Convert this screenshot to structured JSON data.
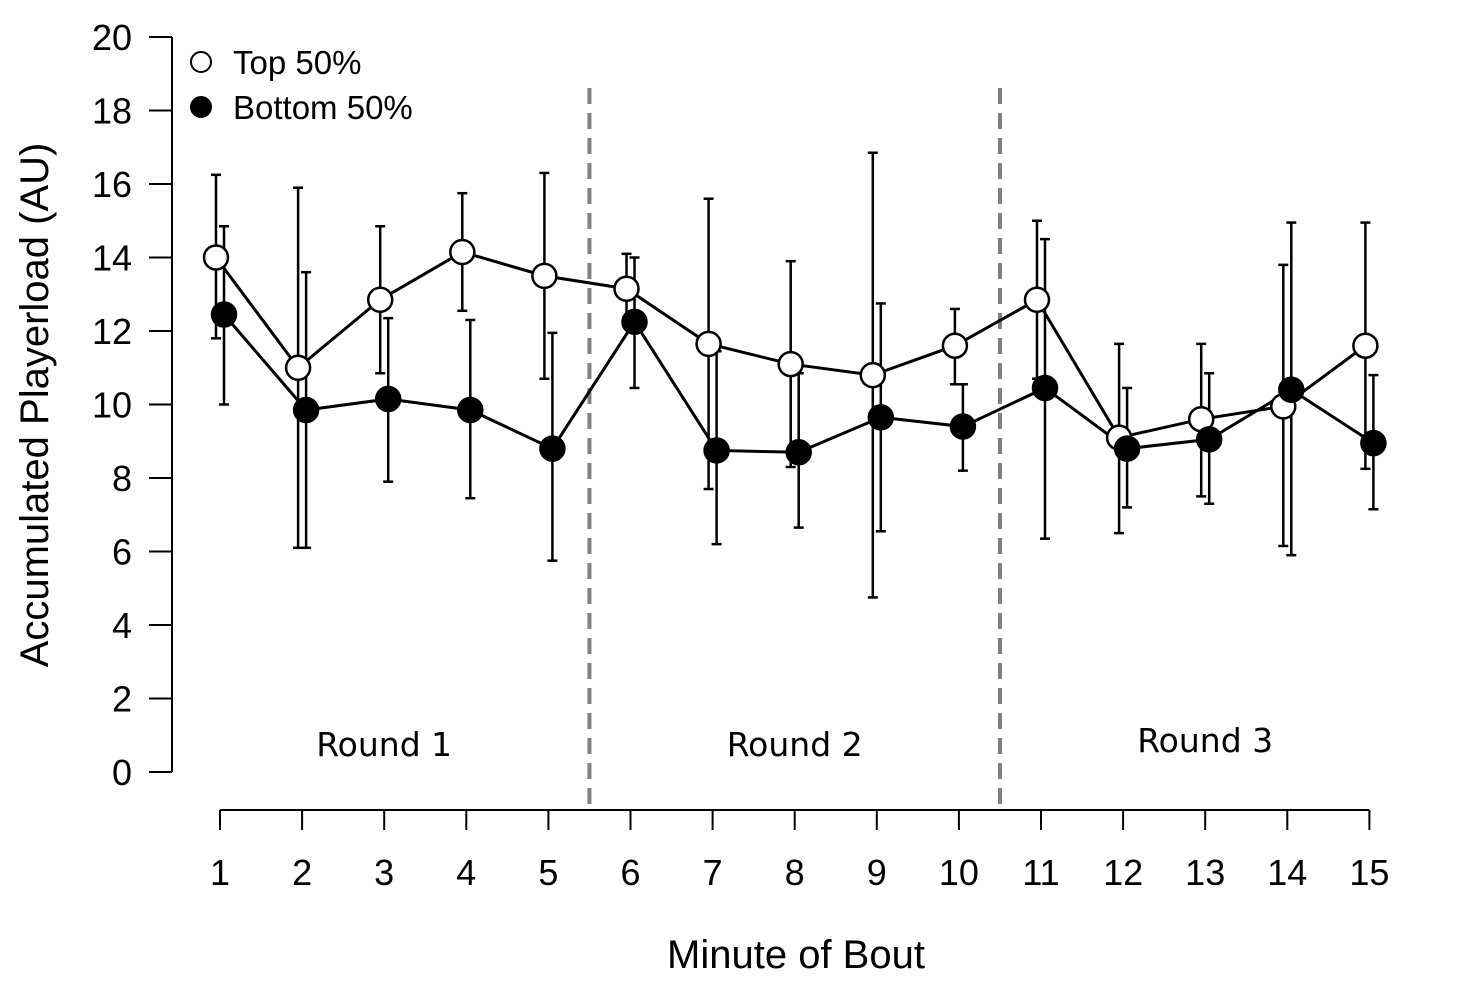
{
  "chart_data": {
    "type": "line",
    "title": "",
    "xlabel": "Minute of Bout",
    "ylabel": "Accumulated Playerload (AU)",
    "ylim": [
      0,
      20
    ],
    "yticks": [
      0,
      2,
      4,
      6,
      8,
      10,
      12,
      14,
      16,
      18,
      20
    ],
    "x": [
      1,
      2,
      3,
      4,
      5,
      6,
      7,
      8,
      9,
      10,
      11,
      12,
      13,
      14,
      15
    ],
    "xtick_labels": [
      "1",
      "2",
      "3",
      "4",
      "5",
      "6",
      "7",
      "8",
      "9",
      "10",
      "11",
      "12",
      "13",
      "14",
      "15"
    ],
    "grid": false,
    "legend_position": "top-left",
    "series": [
      {
        "name": "Top 50%",
        "marker": "open-circle",
        "values": [
          14.0,
          11.0,
          12.85,
          14.15,
          13.5,
          13.15,
          11.65,
          11.1,
          10.8,
          11.6,
          12.85,
          9.1,
          9.6,
          9.95,
          11.6
        ],
        "err_low": [
          11.8,
          6.1,
          10.85,
          12.55,
          10.7,
          12.2,
          7.7,
          8.3,
          4.75,
          10.55,
          10.7,
          6.5,
          7.5,
          6.15,
          8.25
        ],
        "err_high": [
          16.25,
          15.9,
          14.85,
          15.75,
          16.3,
          14.1,
          15.6,
          13.9,
          16.85,
          12.6,
          15.0,
          11.65,
          11.65,
          13.8,
          14.95
        ]
      },
      {
        "name": "Bottom 50%",
        "marker": "filled-circle",
        "values": [
          12.45,
          9.85,
          10.15,
          9.85,
          8.8,
          12.25,
          8.75,
          8.7,
          9.65,
          9.4,
          10.45,
          8.8,
          9.05,
          10.4,
          8.95
        ],
        "err_low": [
          10.0,
          6.1,
          7.9,
          7.45,
          5.75,
          10.45,
          6.2,
          6.65,
          6.55,
          8.2,
          6.35,
          7.2,
          7.3,
          5.9,
          7.15
        ],
        "err_high": [
          14.85,
          13.6,
          12.35,
          12.3,
          11.95,
          14.0,
          11.45,
          10.85,
          12.75,
          10.55,
          14.5,
          10.45,
          10.85,
          14.95,
          10.8
        ]
      }
    ],
    "dividers_after_x": [
      5.5,
      10.5
    ],
    "divider_color": "#808080",
    "annotations": [
      "Round 1",
      "Round 2",
      "Round 3"
    ]
  }
}
